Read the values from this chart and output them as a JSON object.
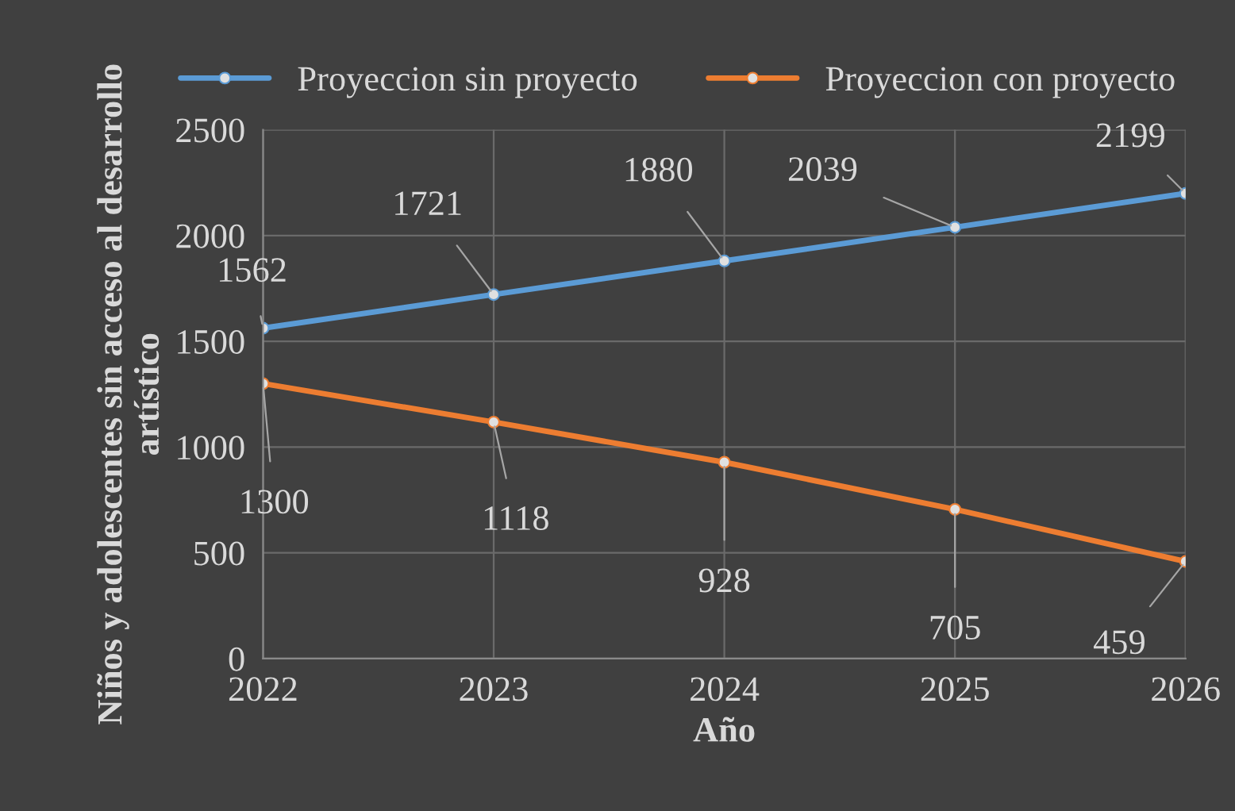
{
  "chart_data": {
    "type": "line",
    "xlabel": "Año",
    "ylabel": "Niños y adolescentes sin acceso al desarrollo artístico",
    "categories": [
      "2022",
      "2023",
      "2024",
      "2025",
      "2026"
    ],
    "series": [
      {
        "name": "Proyeccion sin proyecto",
        "color": "#5b9bd5",
        "values": [
          1562,
          1721,
          1880,
          2039,
          2199
        ]
      },
      {
        "name": "Proyeccion con proyecto",
        "color": "#ed7d31",
        "values": [
          1300,
          1118,
          928,
          705,
          459
        ]
      }
    ],
    "ylim": [
      0,
      2500
    ],
    "yticks": [
      0,
      500,
      1000,
      1500,
      2000,
      2500
    ],
    "grid": true,
    "legend": "top",
    "marker": "circle",
    "line_style": "solid",
    "data_labels": true
  }
}
